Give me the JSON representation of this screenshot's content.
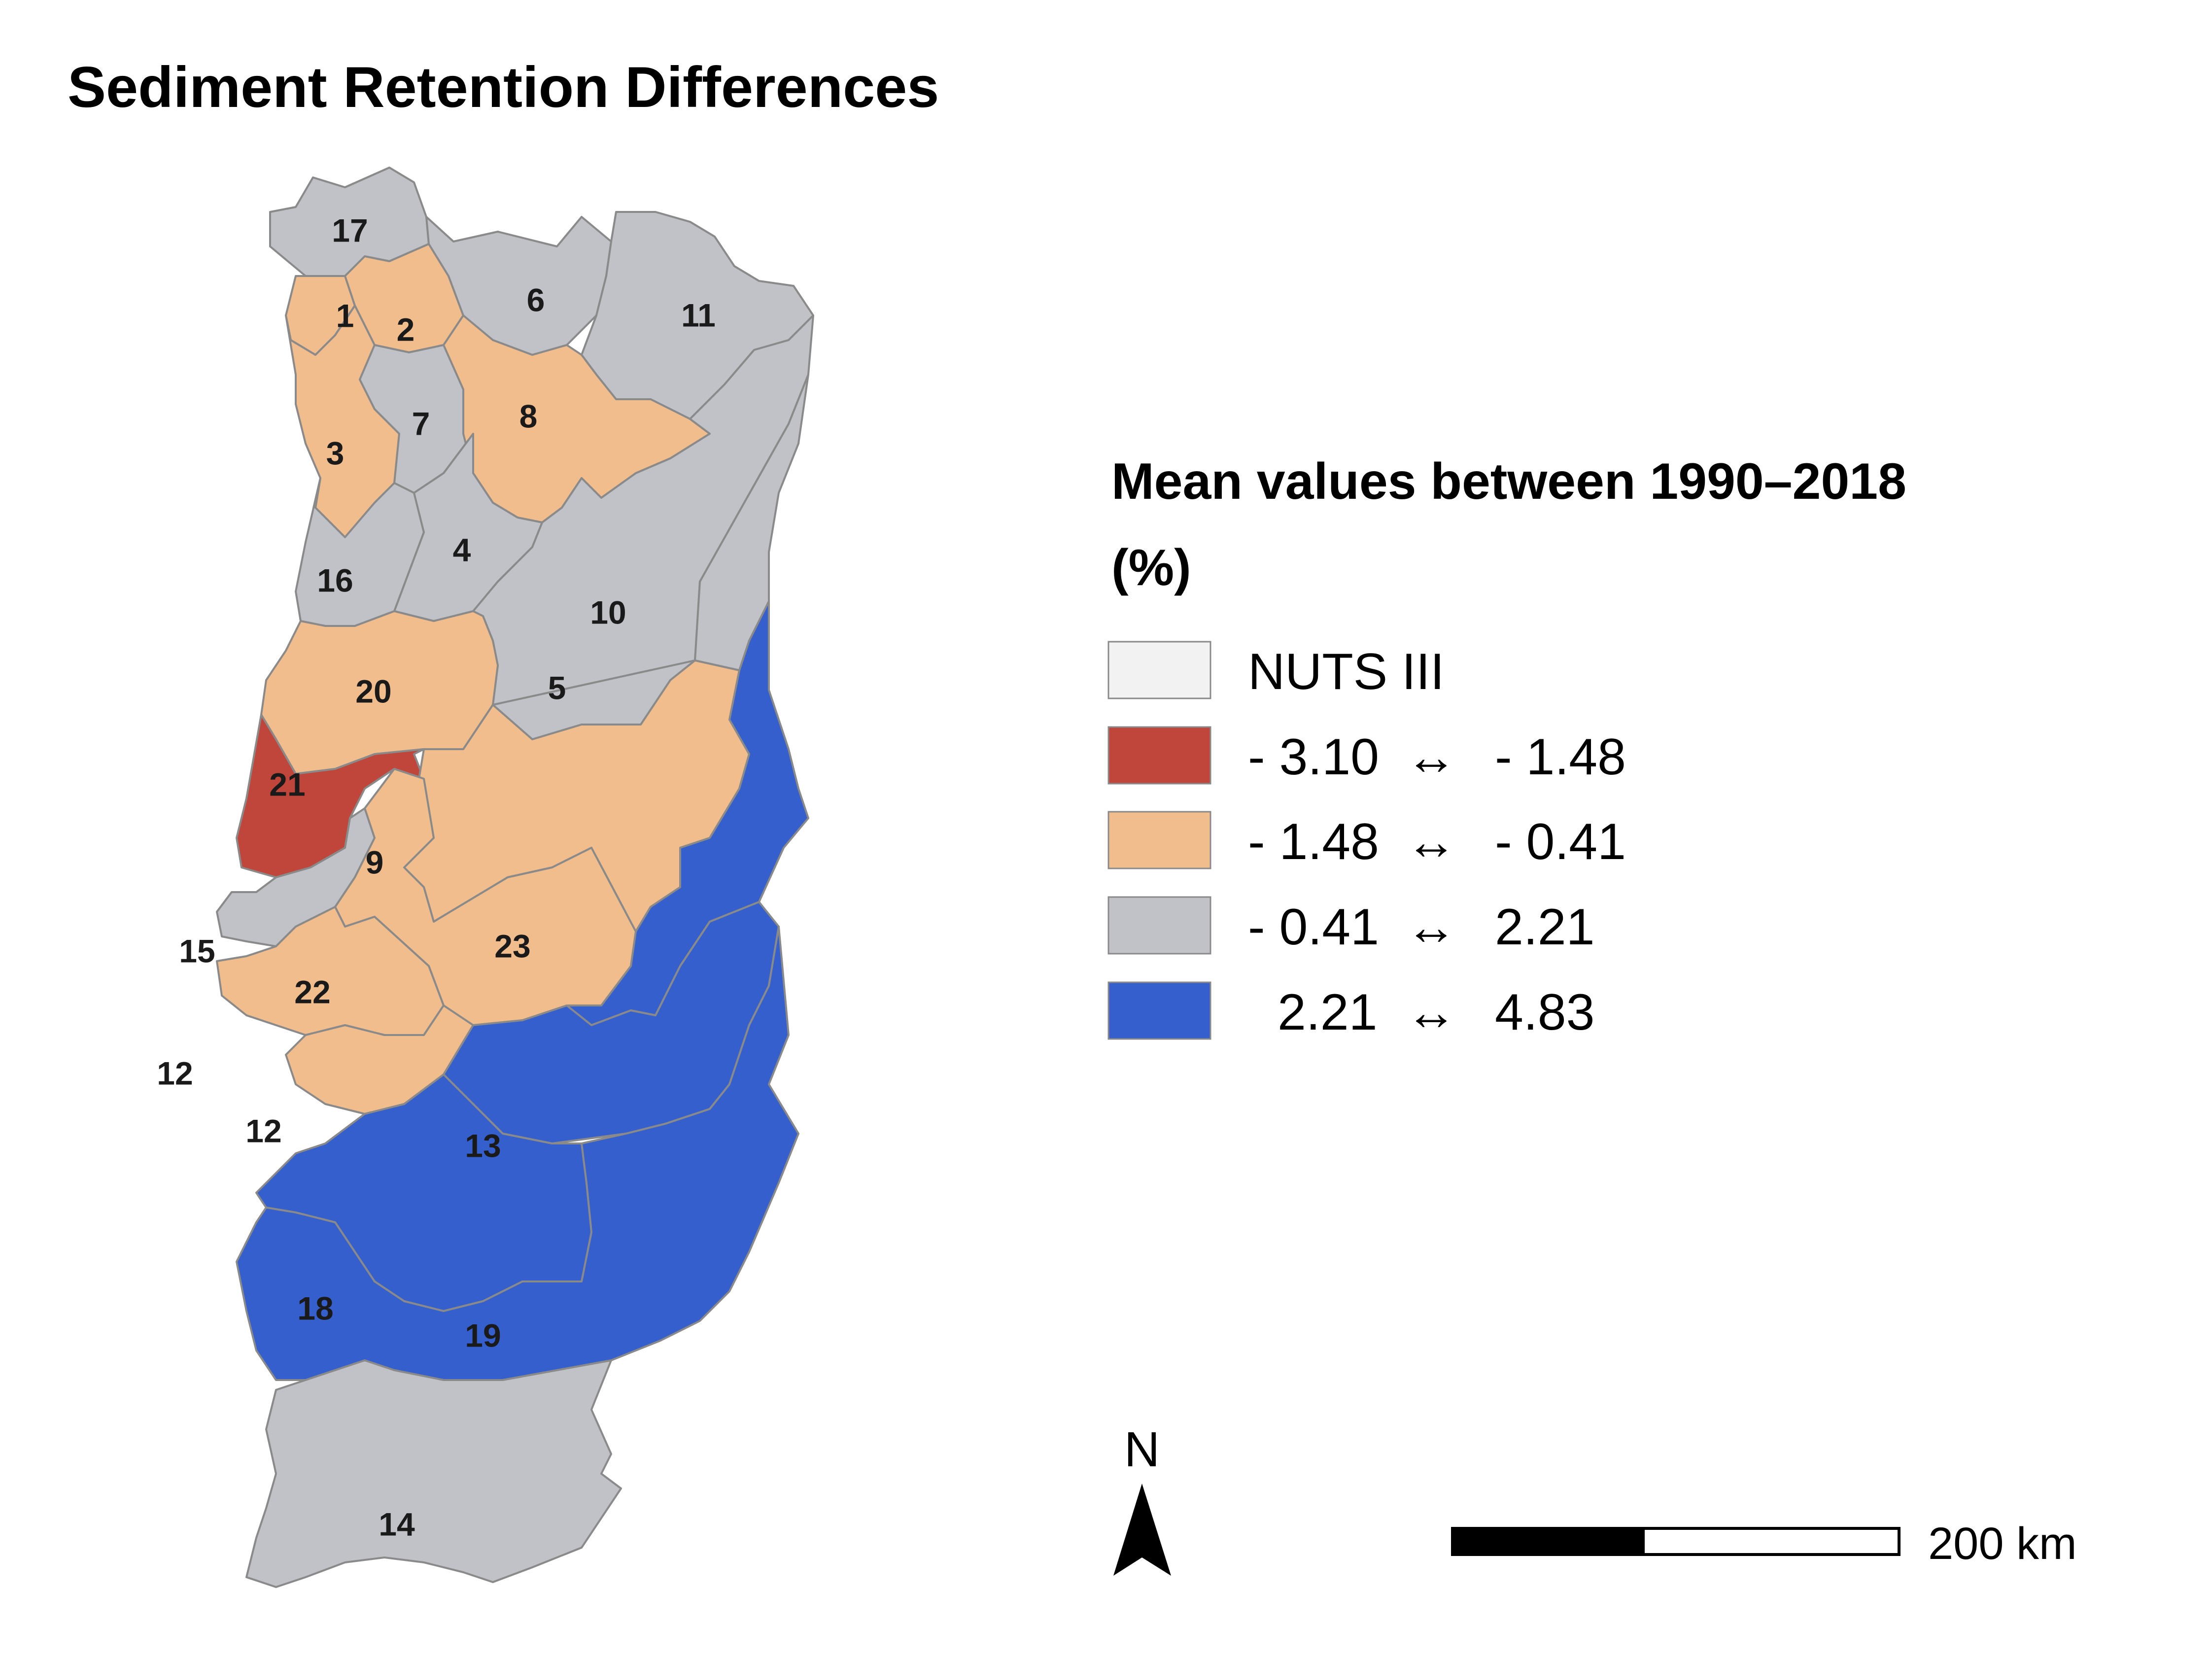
{
  "title": "Sediment Retention Differences",
  "legend": {
    "title_line1": "Mean values between 1990–2018",
    "title_line2": "(%)",
    "items": [
      {
        "label": "NUTS III",
        "color": "#f2f2f2"
      },
      {
        "from": "- 3.10",
        "to": "- 1.48",
        "color": "#c0453a"
      },
      {
        "from": "- 1.48",
        "to": "- 0.41",
        "color": "#f2bd8c"
      },
      {
        "from": "- 0.41",
        "to": "2.21",
        "color": "#c0c2c7"
      },
      {
        "from": "2.21",
        "to": "4.83",
        "color": "#345fcc"
      }
    ],
    "arrow_glyph": "↔"
  },
  "regions": [
    {
      "id": "17",
      "color": "#c0c2c7"
    },
    {
      "id": "1",
      "color": "#f2bd8c"
    },
    {
      "id": "2",
      "color": "#f2bd8c"
    },
    {
      "id": "6",
      "color": "#c0c2c7"
    },
    {
      "id": "11",
      "color": "#c0c2c7"
    },
    {
      "id": "3",
      "color": "#f2bd8c"
    },
    {
      "id": "7",
      "color": "#c0c2c7"
    },
    {
      "id": "8",
      "color": "#f2bd8c"
    },
    {
      "id": "16",
      "color": "#c0c2c7"
    },
    {
      "id": "4",
      "color": "#c0c2c7"
    },
    {
      "id": "10",
      "color": "#c0c2c7"
    },
    {
      "id": "20",
      "color": "#f2bd8c"
    },
    {
      "id": "21",
      "color": "#c0453a"
    },
    {
      "id": "5",
      "color": "#c0c2c7"
    },
    {
      "id": "9",
      "color": "#f2bd8c"
    },
    {
      "id": "15",
      "color": "#c0c2c7"
    },
    {
      "id": "22",
      "color": "#f2bd8c"
    },
    {
      "id": "23",
      "color": "#345fcc"
    },
    {
      "id": "12",
      "color": "#f2bd8c"
    },
    {
      "id": "12",
      "color": "#f2bd8c"
    },
    {
      "id": "13",
      "color": "#345fcc"
    },
    {
      "id": "18",
      "color": "#345fcc"
    },
    {
      "id": "19",
      "color": "#345fcc"
    },
    {
      "id": "14",
      "color": "#c0c2c7"
    }
  ],
  "north_arrow": {
    "label": "N",
    "icon": "north-arrow-icon"
  },
  "scale_bar": {
    "label": "200 km"
  }
}
